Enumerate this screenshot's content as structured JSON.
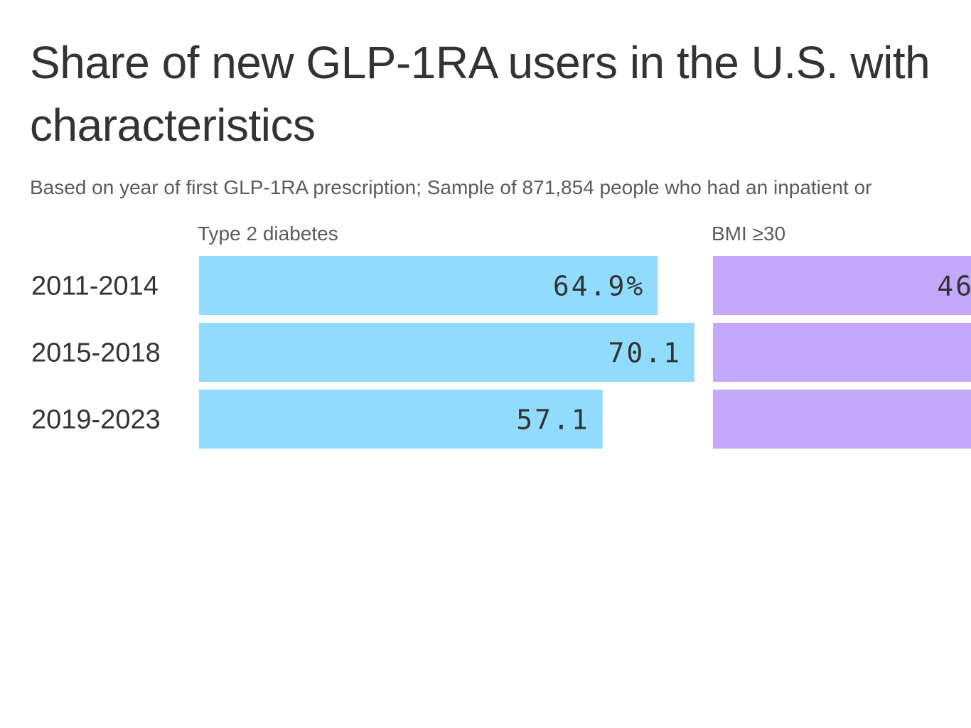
{
  "header": {
    "title_line1": "Share of new GLP-1RA users in the U.S. with",
    "title_line2": "characteristics",
    "subtitle": "Based on year of first GLP-1RA prescription; Sample of 871,854 people who had an inpatient or"
  },
  "chart_data": {
    "type": "bar",
    "orientation": "horizontal",
    "categories": [
      "2011-2014",
      "2015-2018",
      "2019-2023"
    ],
    "series": [
      {
        "name": "Type 2 diabetes",
        "values": [
          64.9,
          70.1,
          57.1
        ],
        "value_labels": [
          "64.9%",
          "70.1",
          "57.1"
        ],
        "color": "#91dcfd"
      },
      {
        "name": "BMI ≥30",
        "values": [
          null,
          null,
          null
        ],
        "value_labels": [
          "46",
          "",
          ""
        ],
        "color": "#c3a8fc"
      }
    ],
    "xlim": [
      0,
      70.1
    ],
    "grid": false,
    "legend": "none"
  }
}
